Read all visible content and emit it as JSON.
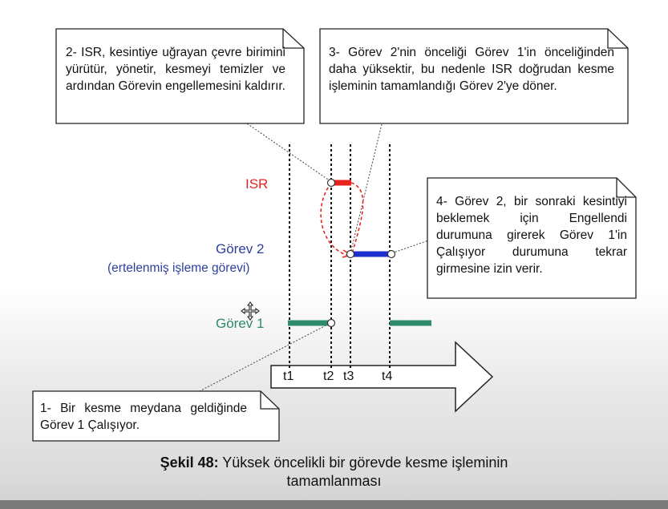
{
  "notes": {
    "note1": "1- Bir kesme meydana geldiğinde Görev 1 Çalışıyor.",
    "note2": "2- ISR, kesintiye uğrayan çevre birimini yürütür, yönetir, kesmeyi temizler ve ardından Görevin engellemesini kaldırır.",
    "note3": "3- Görev 2'nin önceliği Görev 1'in önceliğinden daha yüksektir, bu nedenle ISR doğrudan kesme işleminin tamamlandığı Görev 2'ye döner.",
    "note4": "4- Görev 2, bir sonraki kesintiyi beklemek için Engellendi durumuna girerek Görev 1'in Çalışıyor durumuna tekrar girmesine izin verir."
  },
  "labels": {
    "isr": "ISR",
    "task2": "Görev 2",
    "task2_sub": "(ertelenmiş işleme görevi)",
    "task1": "Görev 1"
  },
  "ticks": {
    "t1": "t1",
    "t2": "t2",
    "t3": "t3",
    "t4": "t4"
  },
  "caption": {
    "prefix": "Şekil 48:",
    "text": " Yüksek öncelikli bir görevde kesme işleminin",
    "line2": "tamamlanması"
  },
  "colors": {
    "isr": "#e8231f",
    "task2": "#1b2fcf",
    "task2_label": "#2d3f9e",
    "task1": "#2e8b6a"
  }
}
